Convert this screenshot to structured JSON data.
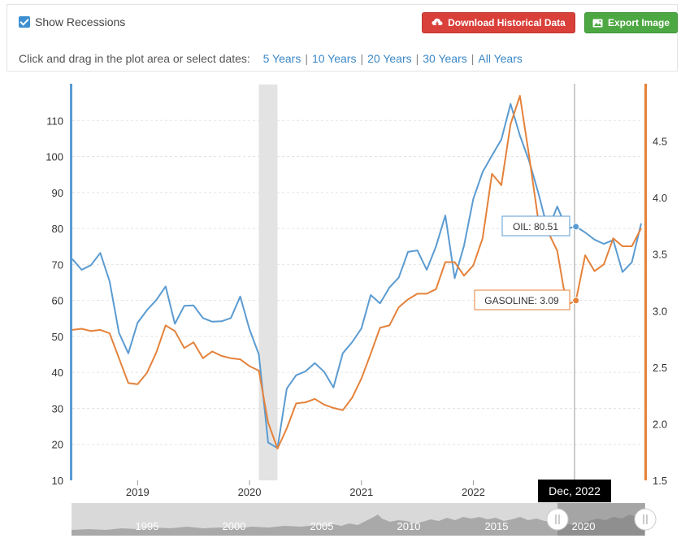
{
  "controls": {
    "show_recessions_label": "Show Recessions",
    "download_label": "Download Historical Data",
    "export_label": "Export Image",
    "select_prompt": "Click and drag in the plot area or select dates:",
    "ranges": [
      "5 Years",
      "10 Years",
      "20 Years",
      "30 Years",
      "All Years"
    ]
  },
  "tooltips": {
    "oil": "OIL: 80.51",
    "gasoline": "GASOLINE: 3.09",
    "date": "Dec, 2022"
  },
  "navigator": {
    "labels": [
      "1995",
      "2000",
      "2005",
      "2010",
      "2015",
      "2020"
    ]
  },
  "colors": {
    "oil": "#5b9bd1",
    "gasoline": "#e4823b",
    "recession": "#e3e3e3"
  },
  "chart_data": {
    "type": "line",
    "x_tick_labels": [
      "2019",
      "2020",
      "2021",
      "2022"
    ],
    "y_left": {
      "ticks": [
        10,
        20,
        30,
        40,
        50,
        60,
        70,
        80,
        90,
        100,
        110
      ],
      "range": [
        10,
        120
      ]
    },
    "y_right": {
      "ticks": [
        "1.5",
        "2.0",
        "2.5",
        "3.0",
        "3.5",
        "4.0",
        "4.5"
      ],
      "range": [
        1.5,
        5.0
      ]
    },
    "recession": [
      "2020-02",
      "2020-04"
    ],
    "x_range": [
      "2018-06",
      "2023-06"
    ],
    "grid": true,
    "series": [
      {
        "name": "OIL",
        "axis": "left",
        "points": [
          [
            "2018-06",
            71.5
          ],
          [
            "2018-07",
            68.5
          ],
          [
            "2018-08",
            69.8
          ],
          [
            "2018-09",
            73.2
          ],
          [
            "2018-10",
            65.3
          ],
          [
            "2018-11",
            51.0
          ],
          [
            "2018-12",
            45.3
          ],
          [
            "2019-01",
            53.8
          ],
          [
            "2019-02",
            57.3
          ],
          [
            "2019-03",
            60.1
          ],
          [
            "2019-04",
            63.9
          ],
          [
            "2019-05",
            53.5
          ],
          [
            "2019-06",
            58.5
          ],
          [
            "2019-07",
            58.6
          ],
          [
            "2019-08",
            55.1
          ],
          [
            "2019-09",
            54.1
          ],
          [
            "2019-10",
            54.2
          ],
          [
            "2019-11",
            55.1
          ],
          [
            "2019-12",
            61.1
          ],
          [
            "2020-01",
            52.0
          ],
          [
            "2020-02",
            45.0
          ],
          [
            "2020-03",
            20.5
          ],
          [
            "2020-04",
            19.0
          ],
          [
            "2020-05",
            35.5
          ],
          [
            "2020-06",
            39.2
          ],
          [
            "2020-07",
            40.3
          ],
          [
            "2020-08",
            42.6
          ],
          [
            "2020-09",
            40.2
          ],
          [
            "2020-10",
            35.8
          ],
          [
            "2020-11",
            45.3
          ],
          [
            "2020-12",
            48.4
          ],
          [
            "2021-01",
            52.2
          ],
          [
            "2021-02",
            61.5
          ],
          [
            "2021-03",
            59.2
          ],
          [
            "2021-04",
            63.6
          ],
          [
            "2021-05",
            66.3
          ],
          [
            "2021-06",
            73.5
          ],
          [
            "2021-07",
            73.9
          ],
          [
            "2021-08",
            68.5
          ],
          [
            "2021-09",
            75.0
          ],
          [
            "2021-10",
            83.6
          ],
          [
            "2021-11",
            66.2
          ],
          [
            "2021-12",
            75.2
          ],
          [
            "2022-01",
            88.2
          ],
          [
            "2022-02",
            95.7
          ],
          [
            "2022-03",
            100.3
          ],
          [
            "2022-04",
            104.7
          ],
          [
            "2022-05",
            114.6
          ],
          [
            "2022-06",
            105.8
          ],
          [
            "2022-07",
            98.6
          ],
          [
            "2022-08",
            89.6
          ],
          [
            "2022-09",
            79.5
          ],
          [
            "2022-10",
            86.1
          ],
          [
            "2022-11",
            80.0
          ],
          [
            "2022-12",
            80.5
          ],
          [
            "2023-01",
            78.9
          ],
          [
            "2023-02",
            76.9
          ],
          [
            "2023-03",
            75.7
          ],
          [
            "2023-04",
            76.8
          ],
          [
            "2023-05",
            67.9
          ],
          [
            "2023-06",
            70.6
          ],
          [
            "2023-07",
            81.4
          ]
        ]
      },
      {
        "name": "GASOLINE",
        "axis": "right",
        "points": [
          [
            "2018-06",
            2.83
          ],
          [
            "2018-07",
            2.84
          ],
          [
            "2018-08",
            2.82
          ],
          [
            "2018-09",
            2.83
          ],
          [
            "2018-10",
            2.8
          ],
          [
            "2018-11",
            2.58
          ],
          [
            "2018-12",
            2.36
          ],
          [
            "2019-01",
            2.35
          ],
          [
            "2019-02",
            2.45
          ],
          [
            "2019-03",
            2.63
          ],
          [
            "2019-04",
            2.87
          ],
          [
            "2019-05",
            2.82
          ],
          [
            "2019-06",
            2.67
          ],
          [
            "2019-07",
            2.72
          ],
          [
            "2019-08",
            2.58
          ],
          [
            "2019-09",
            2.64
          ],
          [
            "2019-10",
            2.6
          ],
          [
            "2019-11",
            2.58
          ],
          [
            "2019-12",
            2.57
          ],
          [
            "2020-01",
            2.51
          ],
          [
            "2020-02",
            2.47
          ],
          [
            "2020-03",
            2.01
          ],
          [
            "2020-04",
            1.78
          ],
          [
            "2020-05",
            1.96
          ],
          [
            "2020-06",
            2.18
          ],
          [
            "2020-07",
            2.19
          ],
          [
            "2020-08",
            2.22
          ],
          [
            "2020-09",
            2.17
          ],
          [
            "2020-10",
            2.14
          ],
          [
            "2020-11",
            2.12
          ],
          [
            "2020-12",
            2.23
          ],
          [
            "2021-01",
            2.4
          ],
          [
            "2021-02",
            2.62
          ],
          [
            "2021-03",
            2.85
          ],
          [
            "2021-04",
            2.87
          ],
          [
            "2021-05",
            3.03
          ],
          [
            "2021-06",
            3.1
          ],
          [
            "2021-07",
            3.15
          ],
          [
            "2021-08",
            3.15
          ],
          [
            "2021-09",
            3.19
          ],
          [
            "2021-10",
            3.43
          ],
          [
            "2021-11",
            3.43
          ],
          [
            "2021-12",
            3.31
          ],
          [
            "2022-01",
            3.4
          ],
          [
            "2022-02",
            3.64
          ],
          [
            "2022-03",
            4.21
          ],
          [
            "2022-04",
            4.11
          ],
          [
            "2022-05",
            4.65
          ],
          [
            "2022-06",
            4.9
          ],
          [
            "2022-07",
            4.36
          ],
          [
            "2022-08",
            3.78
          ],
          [
            "2022-09",
            3.7
          ],
          [
            "2022-10",
            3.53
          ],
          [
            "2022-11",
            3.05
          ],
          [
            "2022-12",
            3.09
          ],
          [
            "2023-01",
            3.49
          ],
          [
            "2023-02",
            3.35
          ],
          [
            "2023-03",
            3.41
          ],
          [
            "2023-04",
            3.64
          ],
          [
            "2023-05",
            3.57
          ],
          [
            "2023-06",
            3.57
          ],
          [
            "2023-07",
            3.73
          ]
        ]
      }
    ]
  }
}
